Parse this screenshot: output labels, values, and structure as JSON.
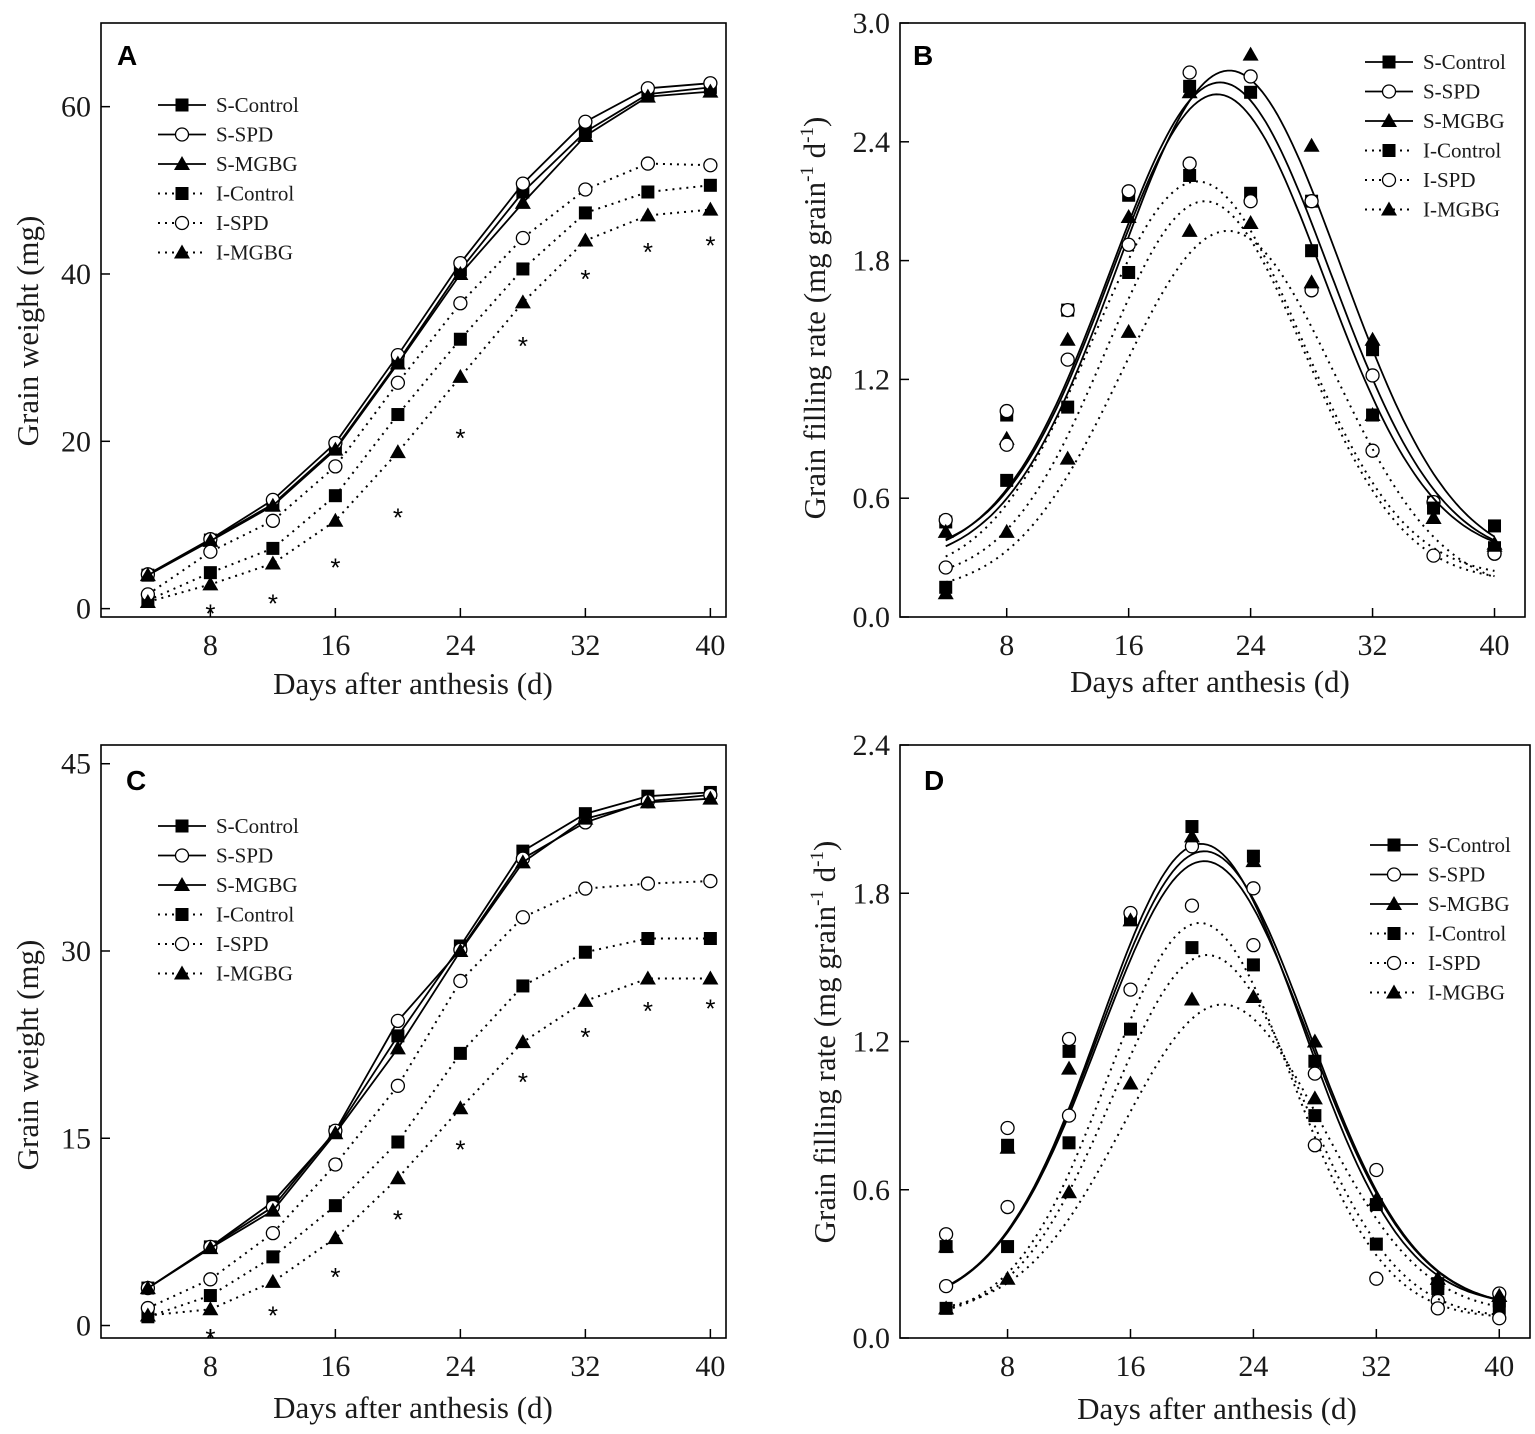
{
  "chart_data": [
    {
      "panel": "A",
      "type": "line",
      "xlabel": "Days after anthesis (d)",
      "ylabel": "Grain weight (mg)",
      "xlim": [
        1,
        41
      ],
      "ylim": [
        -1,
        70
      ],
      "xticks": [
        8,
        16,
        24,
        32,
        40
      ],
      "yticks": [
        0,
        20,
        40,
        60
      ],
      "legend_position": "top-left",
      "x": [
        4,
        8,
        12,
        16,
        20,
        24,
        28,
        32,
        36,
        40
      ],
      "series": [
        {
          "name": "S-Control",
          "style": "solid",
          "marker": "square",
          "values": [
            4,
            8.2,
            12.5,
            19.2,
            29.5,
            40.5,
            49.8,
            57,
            61.5,
            62.3
          ]
        },
        {
          "name": "S-SPD",
          "style": "solid",
          "marker": "circle",
          "values": [
            4.1,
            8.3,
            13,
            19.8,
            30.3,
            41.3,
            50.8,
            58.2,
            62.2,
            62.8
          ]
        },
        {
          "name": "S-MGBG",
          "style": "solid",
          "marker": "triangle",
          "values": [
            4,
            8.1,
            12.3,
            19,
            29.3,
            40,
            48.5,
            56.5,
            61.2,
            61.8
          ]
        },
        {
          "name": "I-Control",
          "style": "dotted",
          "marker": "square",
          "values": [
            1,
            4.3,
            7.2,
            13.5,
            23.2,
            32.2,
            40.6,
            47.3,
            49.8,
            50.6
          ]
        },
        {
          "name": "I-SPD",
          "style": "dotted",
          "marker": "circle",
          "values": [
            1.7,
            6.8,
            10.5,
            17,
            27,
            36.5,
            44.3,
            50.1,
            53.2,
            53
          ]
        },
        {
          "name": "I-MGBG",
          "style": "dotted",
          "marker": "triangle",
          "values": [
            0.8,
            2.9,
            5.4,
            10.5,
            18.7,
            27.7,
            36.6,
            44,
            47,
            47.7
          ]
        }
      ],
      "significance": {
        "symbol": "*",
        "x": [
          8,
          12,
          16,
          20,
          24,
          28,
          32,
          36,
          40
        ],
        "y": [
          0,
          1.2,
          5.5,
          11.5,
          21,
          32,
          40,
          43.2,
          44
        ]
      }
    },
    {
      "panel": "B",
      "type": "line",
      "xlabel": "Days after anthesis (d)",
      "ylabel": "Grain filling rate (mg grain",
      "ylabel_sup1": "-1",
      "ylabel_mid": " d",
      "ylabel_sup2": "-1",
      "ylabel_end": ")",
      "xlim": [
        1,
        42
      ],
      "ylim": [
        0,
        3.0
      ],
      "xticks": [
        8,
        16,
        24,
        32,
        40
      ],
      "yticks": [
        0.0,
        0.6,
        1.2,
        1.8,
        2.4,
        3.0
      ],
      "legend_position": "top-right",
      "series": [
        {
          "name": "S-Control",
          "style": "solid",
          "marker": "square",
          "x": [
            4,
            8,
            12,
            16,
            20,
            24,
            28,
            32,
            36,
            40
          ],
          "values": [
            0.48,
            1.02,
            1.55,
            2.13,
            2.68,
            2.65,
            2.1,
            1.35,
            0.58,
            0.46
          ],
          "curve": {
            "peak": 2.7,
            "center": 22.0,
            "width": 7.2,
            "base": 0.28
          }
        },
        {
          "name": "S-SPD",
          "style": "solid",
          "marker": "circle",
          "x": [
            4,
            8,
            12,
            16,
            20,
            24,
            28,
            32,
            36,
            40
          ],
          "values": [
            0.49,
            1.04,
            1.55,
            2.15,
            2.75,
            2.73,
            2.1,
            1.22,
            0.58,
            0.32
          ],
          "curve": {
            "peak": 2.76,
            "center": 22.6,
            "width": 7.3,
            "base": 0.26
          }
        },
        {
          "name": "S-MGBG",
          "style": "solid",
          "marker": "triangle",
          "x": [
            4,
            8,
            12,
            16,
            20,
            24,
            28,
            32,
            36,
            40
          ],
          "values": [
            0.43,
            0.9,
            1.4,
            2.02,
            2.65,
            2.84,
            2.38,
            1.4,
            0.5,
            0.37
          ],
          "curve": {
            "peak": 2.64,
            "center": 21.8,
            "width": 7.0,
            "base": 0.3
          }
        },
        {
          "name": "I-Control",
          "style": "dotted",
          "marker": "square",
          "x": [
            4,
            8,
            12,
            16,
            20,
            24,
            28,
            32,
            36,
            40
          ],
          "values": [
            0.15,
            0.69,
            1.06,
            1.74,
            2.23,
            2.14,
            1.85,
            1.02,
            0.55,
            0.35
          ],
          "curve": {
            "peak": 2.2,
            "center": 20.5,
            "width": 6.8,
            "base": 0.2
          }
        },
        {
          "name": "I-SPD",
          "style": "dotted",
          "marker": "circle",
          "x": [
            4,
            8,
            12,
            16,
            20,
            24,
            28,
            32,
            36,
            40
          ],
          "values": [
            0.25,
            0.87,
            1.3,
            1.88,
            2.29,
            2.1,
            1.65,
            0.84,
            0.31,
            0.32
          ],
          "curve": {
            "peak": 2.1,
            "center": 21.0,
            "width": 6.5,
            "base": 0.18
          }
        },
        {
          "name": "I-MGBG",
          "style": "dotted",
          "marker": "triangle",
          "x": [
            4,
            8,
            12,
            16,
            20,
            24,
            28,
            32,
            36,
            40
          ],
          "values": [
            0.12,
            0.43,
            0.8,
            1.44,
            1.95,
            1.99,
            1.69,
            1.02,
            0.5,
            0.36
          ],
          "curve": {
            "peak": 1.95,
            "center": 22.5,
            "width": 7.0,
            "base": 0.12
          }
        }
      ]
    },
    {
      "panel": "C",
      "type": "line",
      "xlabel": "Days after anthesis (d)",
      "ylabel": "Grain weight (mg)",
      "xlim": [
        1,
        41
      ],
      "ylim": [
        -1,
        46.5
      ],
      "xticks": [
        8,
        16,
        24,
        32,
        40
      ],
      "yticks": [
        0,
        15,
        30,
        45
      ],
      "legend_position": "top-left",
      "x": [
        4,
        8,
        12,
        16,
        20,
        24,
        28,
        32,
        36,
        40
      ],
      "series": [
        {
          "name": "S-Control",
          "style": "solid",
          "marker": "square",
          "values": [
            3,
            6.3,
            9.9,
            15.5,
            23.2,
            30.4,
            38,
            41,
            42.4,
            42.7
          ]
        },
        {
          "name": "S-SPD",
          "style": "solid",
          "marker": "circle",
          "values": [
            3,
            6.3,
            9.5,
            15.6,
            24.4,
            30.1,
            37.4,
            40.3,
            42,
            42.5
          ]
        },
        {
          "name": "S-MGBG",
          "style": "solid",
          "marker": "triangle",
          "values": [
            3,
            6.2,
            9.2,
            15.4,
            22.2,
            30,
            37.1,
            40.6,
            41.9,
            42.2
          ]
        },
        {
          "name": "I-Control",
          "style": "dotted",
          "marker": "square",
          "values": [
            0.7,
            2.4,
            5.5,
            9.6,
            14.7,
            21.8,
            27.2,
            29.9,
            31,
            31
          ]
        },
        {
          "name": "I-SPD",
          "style": "dotted",
          "marker": "circle",
          "values": [
            1.4,
            3.7,
            7.4,
            12.9,
            19.2,
            27.6,
            32.7,
            35,
            35.4,
            35.6
          ]
        },
        {
          "name": "I-MGBG",
          "style": "dotted",
          "marker": "triangle",
          "values": [
            0.8,
            1.3,
            3.5,
            7,
            11.8,
            17.4,
            22.7,
            26,
            27.8,
            27.8
          ]
        }
      ],
      "significance": {
        "symbol": "*",
        "x": [
          8,
          12,
          16,
          20,
          24,
          28,
          32,
          36,
          40
        ],
        "y": [
          -0.6,
          1.2,
          4.3,
          8.9,
          14.5,
          19.9,
          23.5,
          25.6,
          25.8
        ]
      }
    },
    {
      "panel": "D",
      "type": "line",
      "xlabel": "Days after anthesis (d)",
      "ylabel": "Grain filling rate (mg grain",
      "ylabel_sup1": "-1",
      "ylabel_mid": " d",
      "ylabel_sup2": "-1",
      "ylabel_end": ")",
      "xlim": [
        1,
        42
      ],
      "ylim": [
        0,
        2.4
      ],
      "xticks": [
        8,
        16,
        24,
        32,
        40
      ],
      "yticks": [
        0.0,
        0.6,
        1.2,
        1.8,
        2.4
      ],
      "legend_position": "top-right",
      "series": [
        {
          "name": "S-Control",
          "style": "solid",
          "marker": "square",
          "x": [
            4,
            8,
            12,
            16,
            20,
            24,
            28,
            32,
            36,
            40
          ],
          "values": [
            0.37,
            0.78,
            1.16,
            1.7,
            2.07,
            1.95,
            1.12,
            0.54,
            0.22,
            0.15
          ],
          "curve": {
            "peak": 2.0,
            "center": 20.6,
            "width": 6.6,
            "base": 0.13
          }
        },
        {
          "name": "S-SPD",
          "style": "solid",
          "marker": "circle",
          "x": [
            4,
            8,
            12,
            16,
            20,
            24,
            28,
            32,
            36,
            40
          ],
          "values": [
            0.42,
            0.85,
            1.21,
            1.72,
            1.99,
            1.82,
            1.07,
            0.68,
            0.15,
            0.18
          ],
          "curve": {
            "peak": 1.97,
            "center": 20.8,
            "width": 6.8,
            "base": 0.12
          }
        },
        {
          "name": "S-MGBG",
          "style": "solid",
          "marker": "triangle",
          "x": [
            4,
            8,
            12,
            16,
            20,
            24,
            28,
            32,
            36,
            40
          ],
          "values": [
            0.37,
            0.77,
            1.09,
            1.69,
            2.03,
            1.93,
            1.2,
            0.56,
            0.24,
            0.17
          ],
          "curve": {
            "peak": 1.93,
            "center": 20.8,
            "width": 6.8,
            "base": 0.12
          }
        },
        {
          "name": "I-Control",
          "style": "dotted",
          "marker": "square",
          "x": [
            4,
            8,
            12,
            16,
            20,
            24,
            28,
            32,
            36,
            40
          ],
          "values": [
            0.12,
            0.37,
            0.79,
            1.25,
            1.58,
            1.51,
            0.9,
            0.38,
            0.2,
            0.12
          ],
          "curve": {
            "peak": 1.55,
            "center": 21.0,
            "width": 6.2,
            "base": 0.08
          }
        },
        {
          "name": "I-SPD",
          "style": "dotted",
          "marker": "circle",
          "x": [
            4,
            8,
            12,
            16,
            20,
            24,
            28,
            32,
            36,
            40
          ],
          "values": [
            0.21,
            0.53,
            0.9,
            1.41,
            1.75,
            1.59,
            0.78,
            0.24,
            0.12,
            0.08
          ],
          "curve": {
            "peak": 1.68,
            "center": 20.5,
            "width": 6.0,
            "base": 0.08
          }
        },
        {
          "name": "I-MGBG",
          "style": "dotted",
          "marker": "triangle",
          "x": [
            4,
            8,
            12,
            16,
            20,
            24,
            28,
            32,
            36,
            40
          ],
          "values": [
            0.12,
            0.24,
            0.59,
            1.03,
            1.37,
            1.38,
            0.97,
            0.56,
            0.24,
            0.17
          ],
          "curve": {
            "peak": 1.35,
            "center": 22.0,
            "width": 6.5,
            "base": 0.1
          }
        }
      ]
    }
  ]
}
